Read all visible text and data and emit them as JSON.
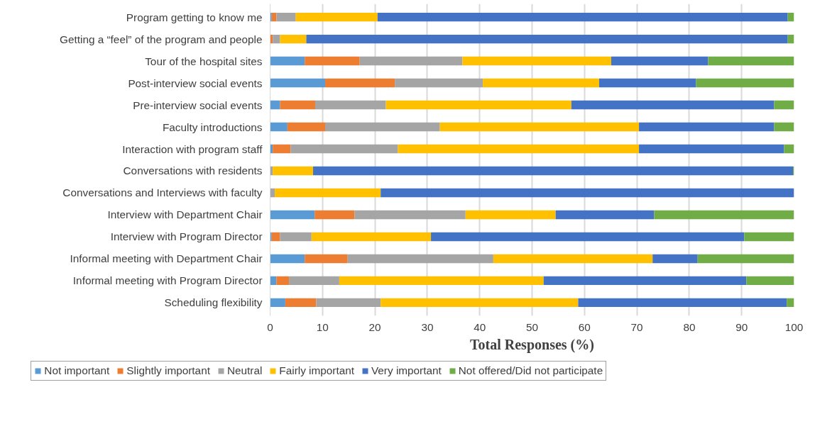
{
  "chart_data": {
    "type": "bar",
    "orientation": "horizontal",
    "stacked": true,
    "categories": [
      "Program getting to know me",
      "Getting a “feel” of the program and people",
      "Tour of the hospital sites",
      "Post-interview social events",
      "Pre-interview social events",
      "Faculty introductions",
      "Interaction with program staff",
      "Conversations with residents",
      "Conversations and Interviews with faculty",
      "Interview with Department Chair",
      "Interview with Program Director",
      "Informal meeting with Department Chair",
      "Informal meeting with Program Director",
      "Scheduling flexibility"
    ],
    "series": [
      {
        "name": "Not important",
        "color": "#5b9bd5",
        "values": [
          0.3,
          0,
          6.6,
          10.5,
          1.9,
          3.3,
          0.5,
          0,
          0,
          8.5,
          0.3,
          6.6,
          1.2,
          2.9
        ]
      },
      {
        "name": "Slightly important",
        "color": "#ed7d31",
        "values": [
          0.9,
          0.5,
          10.5,
          13.3,
          6.7,
          7.2,
          3.4,
          0,
          0,
          7.6,
          1.6,
          8.2,
          2.4,
          5.9
        ]
      },
      {
        "name": "Neutral",
        "color": "#a5a5a5",
        "values": [
          3.7,
          1.4,
          19.6,
          16.8,
          13.5,
          21.9,
          20.5,
          0.5,
          0.9,
          21.2,
          6.0,
          27.8,
          9.6,
          12.3
        ]
      },
      {
        "name": "Fairly important",
        "color": "#ffc000",
        "values": [
          15.6,
          5.0,
          28.4,
          22.2,
          35.4,
          38.0,
          46.0,
          7.7,
          20.2,
          17.2,
          22.8,
          30.4,
          39.0,
          37.7
        ]
      },
      {
        "name": "Very important",
        "color": "#4472c4",
        "values": [
          78.3,
          91.9,
          18.5,
          18.5,
          38.7,
          25.8,
          27.7,
          91.6,
          78.9,
          18.8,
          59.8,
          8.6,
          38.7,
          39.8
        ]
      },
      {
        "name": "Not offered/Did not participate",
        "color": "#70ad47",
        "values": [
          1.2,
          1.2,
          16.4,
          18.7,
          3.8,
          3.8,
          1.9,
          0.2,
          0,
          26.7,
          9.5,
          18.4,
          9.1,
          1.4
        ]
      }
    ],
    "xlabel": "Total Responses (%)",
    "xlim": [
      0,
      100
    ],
    "xticks": [
      0,
      10,
      20,
      30,
      40,
      50,
      60,
      70,
      80,
      90,
      100
    ],
    "grid": "x",
    "legend": "bottom"
  }
}
